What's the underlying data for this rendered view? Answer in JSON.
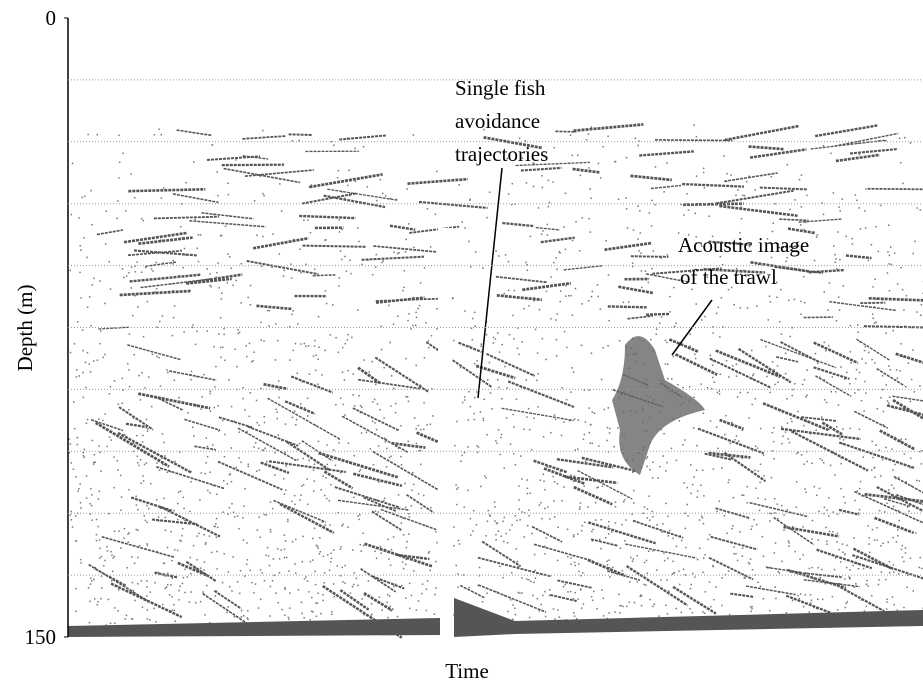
{
  "chart_data": {
    "type": "echogram",
    "x_label": "Time",
    "y_label": "Depth (m)",
    "ylim": [
      0,
      150
    ],
    "yticks": [
      0,
      150
    ],
    "y_inverted": true,
    "gridlines": [
      15,
      30,
      45,
      60,
      75,
      90,
      105,
      120,
      135
    ],
    "annotations": [
      {
        "lines": [
          "Single fish",
          "avoidance",
          "trajectories"
        ]
      },
      {
        "lines": [
          "Acoustic image",
          "of the trawl"
        ]
      }
    ]
  }
}
